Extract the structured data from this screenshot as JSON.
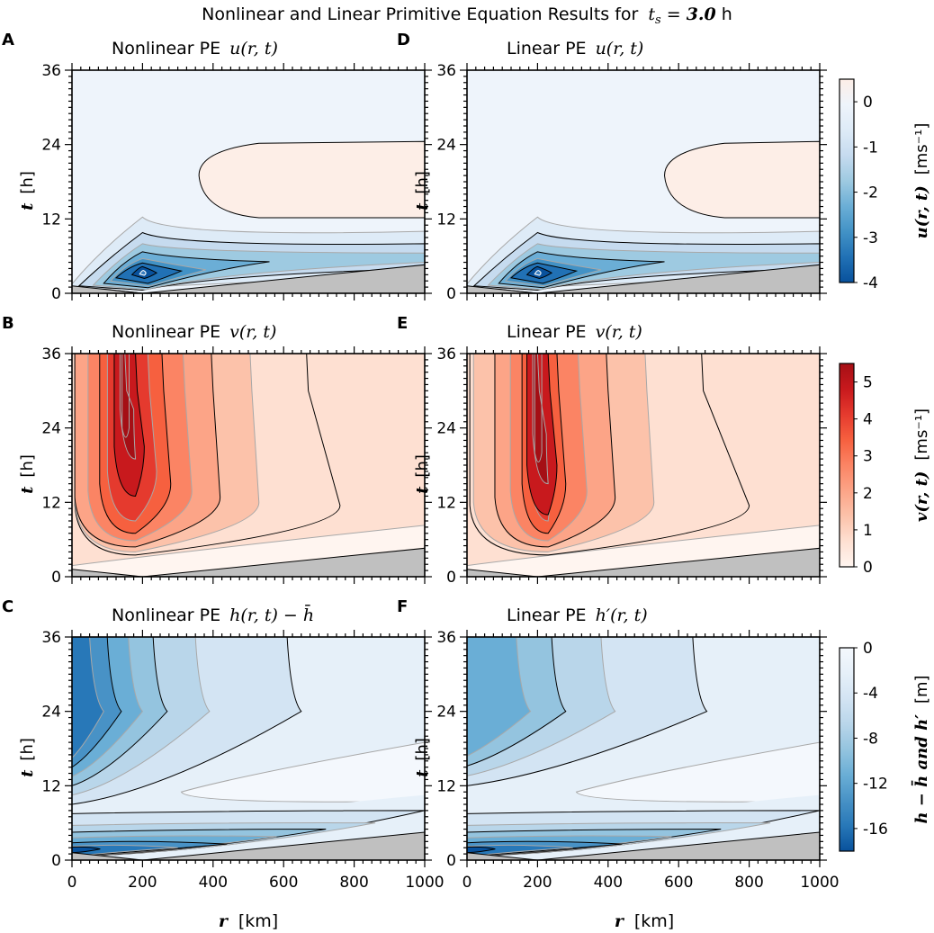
{
  "figure": {
    "title_prefix": "Nonlinear and Linear Primitive Equation Results for",
    "title_var": "t",
    "title_sub": "s",
    "title_eq": " = ",
    "title_value": "3.0",
    "title_unit": " h"
  },
  "axes": {
    "x_label_var": "r",
    "x_label_unit": "[km]",
    "y_label_var": "t",
    "y_label_unit": "[h]",
    "x_ticks": [
      "0",
      "200",
      "400",
      "600",
      "800",
      "1000"
    ],
    "y_ticks": [
      "0",
      "12",
      "24",
      "36"
    ]
  },
  "panels": [
    {
      "letter": "A",
      "title_prefix": "Nonlinear PE",
      "title_math": "u(r, t)"
    },
    {
      "letter": "B",
      "title_prefix": "Nonlinear PE",
      "title_math": "v(r, t)"
    },
    {
      "letter": "C",
      "title_prefix": "Nonlinear PE",
      "title_math": "h(r, t) − h̄"
    },
    {
      "letter": "D",
      "title_prefix": "Linear PE",
      "title_math": "u(r, t)"
    },
    {
      "letter": "E",
      "title_prefix": "Linear PE",
      "title_math": "v(r, t)"
    },
    {
      "letter": "F",
      "title_prefix": "Linear PE",
      "title_math": "h′(r, t)"
    }
  ],
  "colorbars": [
    {
      "label_math": "u(r, t)",
      "label_unit": "[ms⁻¹]",
      "ticks": [
        "0",
        "-1",
        "-2",
        "-3",
        "-4"
      ]
    },
    {
      "label_math": "v(r, t)",
      "label_unit": "[ms⁻¹]",
      "ticks": [
        "5",
        "4",
        "3",
        "2",
        "1",
        "0"
      ]
    },
    {
      "label_math": "h − h̄  and  h′",
      "label_unit": "[m]",
      "ticks": [
        "0",
        "-4",
        "-8",
        "-12",
        "-16"
      ]
    }
  ],
  "colors": {
    "u_scale": [
      "#08519c",
      "#2171b5",
      "#4292c6",
      "#6baed6",
      "#9ecae1",
      "#c6dbef",
      "#deebf7",
      "#eef4fb",
      "#fdeee7"
    ],
    "v_scale": [
      "#fff5f0",
      "#fee0d2",
      "#fcc2aa",
      "#fca487",
      "#fb8464",
      "#f6603f",
      "#e53a2e",
      "#c8191d",
      "#a50f15"
    ],
    "h_scale": [
      "#08519c",
      "#2878b8",
      "#4892c6",
      "#6aaed6",
      "#94c4df",
      "#b9d6ea",
      "#d3e4f3",
      "#e6f0f9",
      "#f4f8fd"
    ],
    "grey_region": "#c0c0c0"
  },
  "chart_data": [
    {
      "type": "heatmap",
      "panel": "A",
      "title": "Nonlinear PE u(r,t)",
      "xlabel": "r [km]",
      "ylabel": "t [h]",
      "xlim": [
        0,
        1000
      ],
      "ylim": [
        0,
        36
      ],
      "colorbar_range": [
        -4,
        0.5
      ],
      "colorbar_ticks": [
        0,
        -1,
        -2,
        -3,
        -4
      ],
      "colorbar_label": "u(r,t) [ms^-1]",
      "min_location": {
        "r": 200,
        "t": 3
      }
    },
    {
      "type": "heatmap",
      "panel": "B",
      "title": "Nonlinear PE v(r,t)",
      "xlabel": "r [km]",
      "ylabel": "t [h]",
      "xlim": [
        0,
        1000
      ],
      "ylim": [
        0,
        36
      ],
      "colorbar_range": [
        0,
        5.5
      ],
      "colorbar_ticks": [
        0,
        1,
        2,
        3,
        4,
        5
      ],
      "colorbar_label": "v(r,t) [ms^-1]",
      "max_location": {
        "r": 150,
        "t": 30
      }
    },
    {
      "type": "heatmap",
      "panel": "C",
      "title": "Nonlinear PE h(r,t) - h_bar",
      "xlabel": "r [km]",
      "ylabel": "t [h]",
      "xlim": [
        0,
        1000
      ],
      "ylim": [
        0,
        36
      ],
      "colorbar_range": [
        -18,
        0
      ],
      "colorbar_ticks": [
        0,
        -4,
        -8,
        -12,
        -16
      ],
      "colorbar_label": "h - h_bar and h' [m]"
    },
    {
      "type": "heatmap",
      "panel": "D",
      "title": "Linear PE u(r,t)",
      "xlabel": "r [km]",
      "ylabel": "t [h]",
      "xlim": [
        0,
        1000
      ],
      "ylim": [
        0,
        36
      ]
    },
    {
      "type": "heatmap",
      "panel": "E",
      "title": "Linear PE v(r,t)",
      "xlabel": "r [km]",
      "ylabel": "t [h]",
      "xlim": [
        0,
        1000
      ],
      "ylim": [
        0,
        36
      ],
      "max_location": {
        "r": 200,
        "t": 30
      }
    },
    {
      "type": "heatmap",
      "panel": "F",
      "title": "Linear PE h'(r,t)",
      "xlabel": "r [km]",
      "ylabel": "t [h]",
      "xlim": [
        0,
        1000
      ],
      "ylim": [
        0,
        36
      ]
    }
  ]
}
